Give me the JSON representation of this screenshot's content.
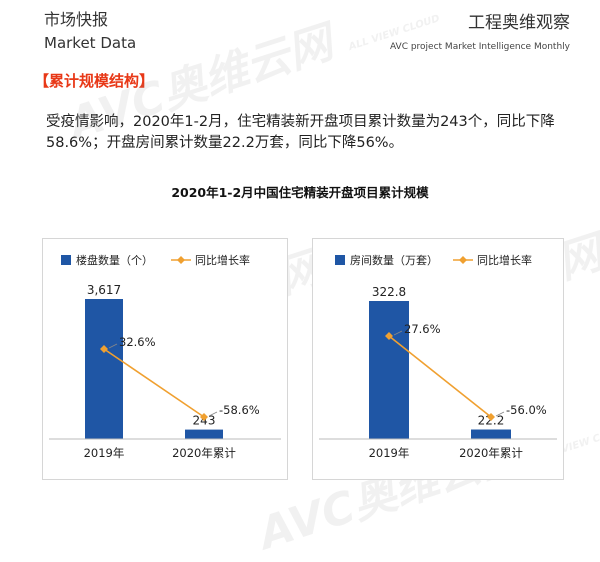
{
  "header": {
    "left_title": "市场快报",
    "left_subtitle": "Market Data",
    "right_title": "工程奥维观察",
    "right_subtitle": "AVC project Market Intelligence Monthly"
  },
  "section_tag": "【累计规模结构】",
  "intro_text": "受疫情影响，2020年1-2月，住宅精装新开盘项目累计数量为243个，同比下降58.6%；开盘房间累计数量22.2万套，同比下降56%。",
  "main_title": "2020年1-2月中国住宅精装开盘项目累计规模",
  "watermark": {
    "brand": "AVC",
    "cn": "奥维云网",
    "en": "ALL VIEW CLOUD"
  },
  "colors": {
    "bar": "#1f56a5",
    "line": "#f0a030",
    "accent": "#e83817"
  },
  "chart_data": [
    {
      "type": "bar",
      "categories": [
        "2019年",
        "2020年累计"
      ],
      "series": [
        {
          "name": "楼盘数量（个）",
          "type": "bar",
          "values": [
            3617,
            243
          ],
          "value_labels": [
            "3,617",
            "243"
          ]
        },
        {
          "name": "同比增长率",
          "type": "line",
          "values": [
            32.6,
            -58.6
          ],
          "value_labels": [
            "32.6%",
            "-58.6%"
          ]
        }
      ],
      "legend": "top"
    },
    {
      "type": "bar",
      "categories": [
        "2019年",
        "2020年累计"
      ],
      "series": [
        {
          "name": "房间数量（万套）",
          "type": "bar",
          "values": [
            322.8,
            22.2
          ],
          "value_labels": [
            "322.8",
            "22.2"
          ]
        },
        {
          "name": "同比增长率",
          "type": "line",
          "values": [
            27.6,
            -56.0
          ],
          "value_labels": [
            "27.6%",
            "-56.0%"
          ]
        }
      ],
      "legend": "top"
    }
  ]
}
